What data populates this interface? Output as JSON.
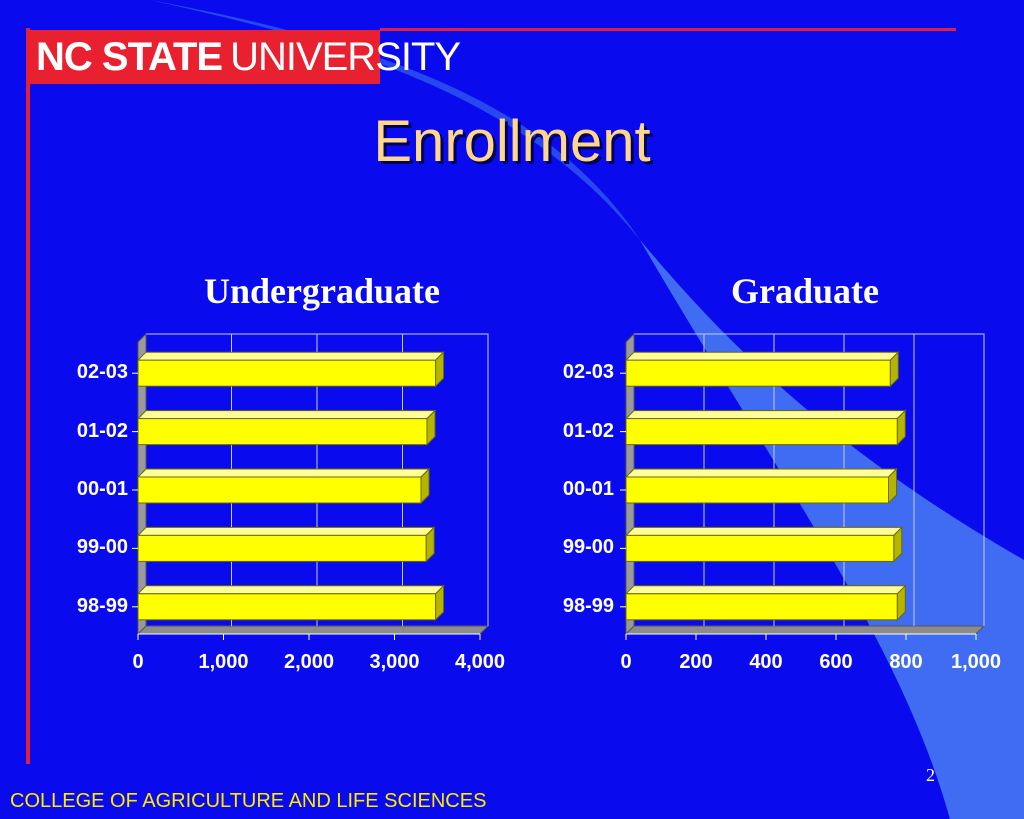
{
  "logo": {
    "bold": "NC STATE",
    "normal": "UNIVERSITY"
  },
  "slide": {
    "title": "Enrollment",
    "footer": "COLLEGE OF AGRICULTURE AND LIFE SCIENCES",
    "page_number": "2"
  },
  "colors": {
    "background": "#0a0aef",
    "bar": "#ffff00",
    "accent_red": "#e0203a",
    "title": "#ffd68a",
    "footer": "#ffea00"
  },
  "chart_data": [
    {
      "type": "bar",
      "orientation": "horizontal",
      "title": "Undergraduate",
      "categories": [
        "02-03",
        "01-02",
        "00-01",
        "99-00",
        "98-99"
      ],
      "values": [
        3480,
        3380,
        3310,
        3370,
        3480
      ],
      "xlim": [
        0,
        4000
      ],
      "xticks": [
        "0",
        "1,000",
        "2,000",
        "3,000",
        "4,000"
      ],
      "grid": true
    },
    {
      "type": "bar",
      "orientation": "horizontal",
      "title": "Graduate",
      "categories": [
        "02-03",
        "01-02",
        "00-01",
        "99-00",
        "98-99"
      ],
      "values": [
        755,
        775,
        750,
        765,
        775
      ],
      "xlim": [
        0,
        1000
      ],
      "xticks": [
        "0",
        "200",
        "400",
        "600",
        "800",
        "1,000"
      ],
      "grid": true
    }
  ]
}
